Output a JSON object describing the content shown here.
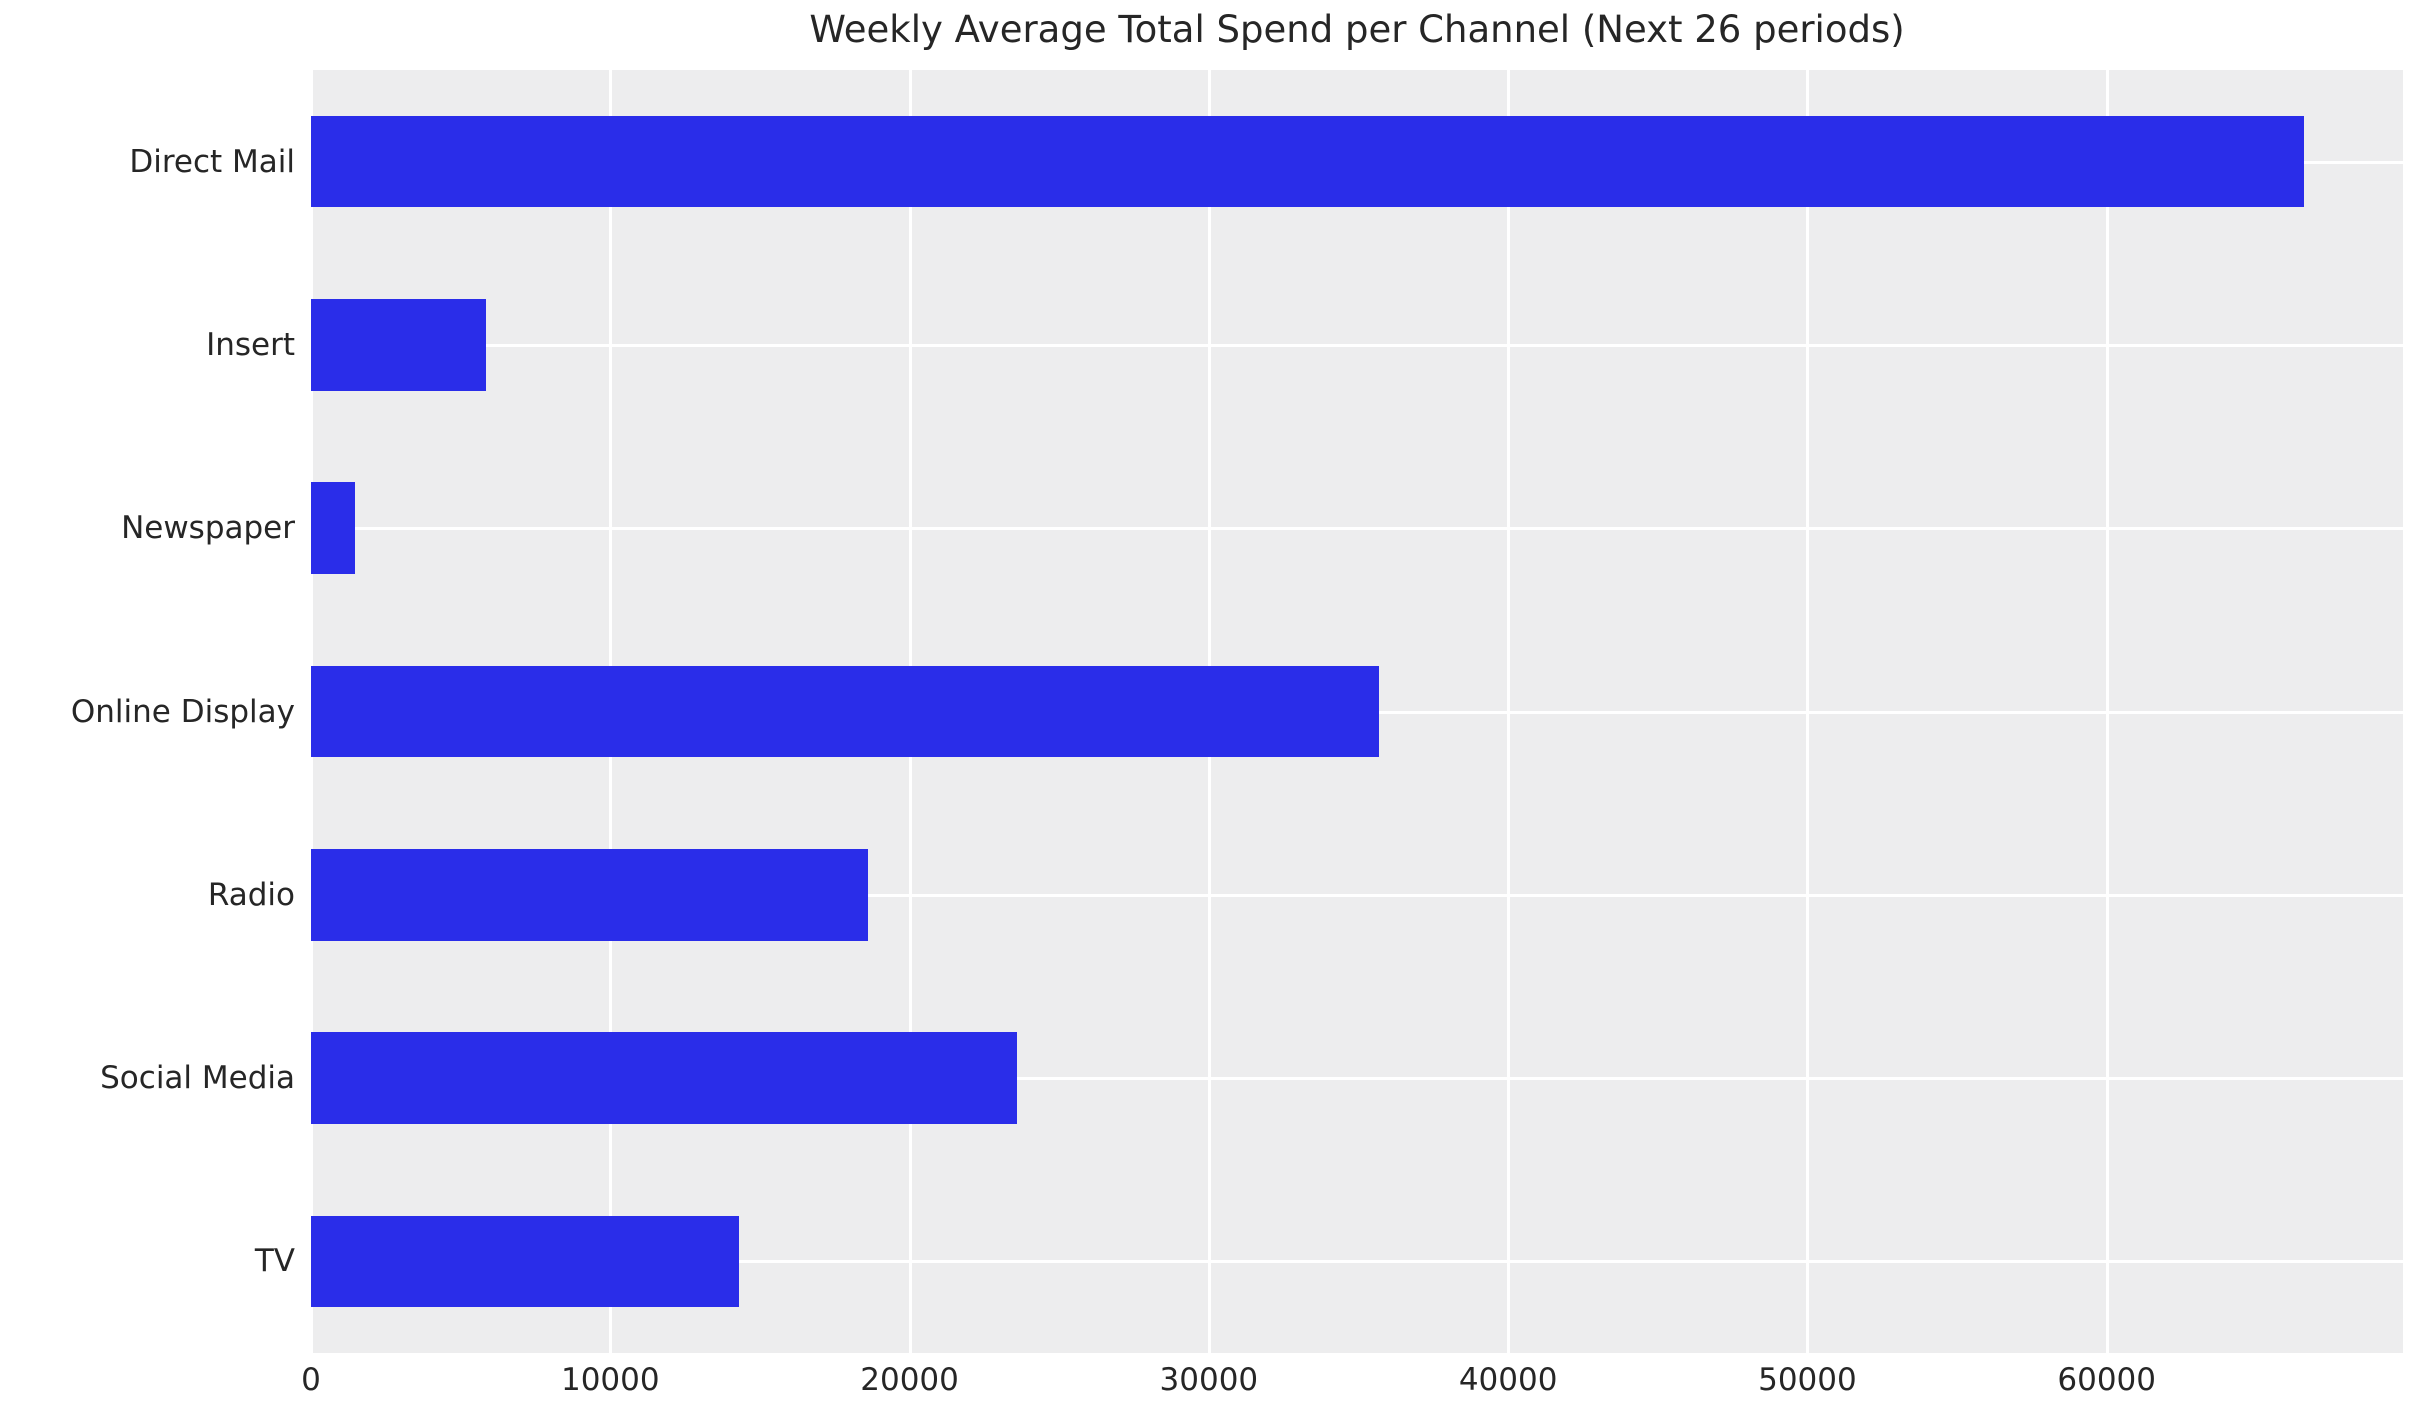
{
  "chart_data": {
    "type": "bar",
    "orientation": "horizontal",
    "title": "Weekly Average Total Spend per Channel (Next 26 periods)",
    "categories": [
      "Direct Mail",
      "Insert",
      "Newspaper",
      "Online Display",
      "Radio",
      "Social Media",
      "TV"
    ],
    "values": [
      66600,
      5850,
      1470,
      35700,
      18600,
      23600,
      14300
    ],
    "xticks": [
      0,
      10000,
      20000,
      30000,
      40000,
      50000,
      60000
    ],
    "xtick_labels": [
      "0",
      "10000",
      "20000",
      "30000",
      "40000",
      "50000",
      "60000"
    ],
    "xlim": [
      0,
      69900
    ],
    "xlabel": "",
    "ylabel": "",
    "grid": true,
    "legend": false,
    "colors": {
      "bar": "#2a2de9",
      "plot_background": "#ededee",
      "figure_background": "#ffffff",
      "gridline": "#ffffff",
      "text": "#262626"
    }
  }
}
